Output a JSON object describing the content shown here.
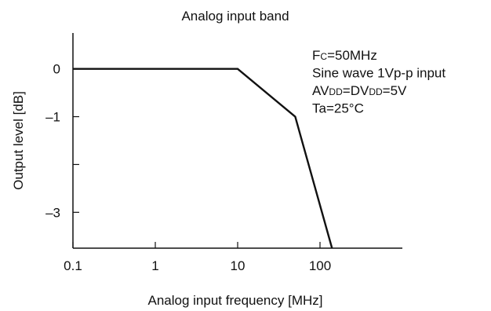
{
  "chart_data": {
    "type": "line",
    "title": "Analog input band",
    "xlabel": "Analog input frequency [MHz]",
    "ylabel": "Output level [dB]",
    "x_scale": "log",
    "xlim": [
      0.1,
      1000
    ],
    "ylim": [
      -3.75,
      0.75
    ],
    "x_ticks": [
      0.1,
      1,
      10,
      100
    ],
    "x_tick_labels": [
      "0.1",
      "1",
      "10",
      "100"
    ],
    "y_ticks": [
      0,
      -1,
      -2,
      -3
    ],
    "y_tick_labels": [
      "0",
      "–1",
      "",
      "–3"
    ],
    "series": [
      {
        "x": [
          0.1,
          10,
          50,
          140
        ],
        "y": [
          0,
          0,
          -1,
          -3.75
        ]
      }
    ],
    "annotations": [
      {
        "parts": [
          {
            "t": "F"
          },
          {
            "t": "C",
            "sub": true
          },
          {
            "t": "=50MHz"
          }
        ]
      },
      {
        "parts": [
          {
            "t": "Sine wave 1Vp-p input"
          }
        ]
      },
      {
        "parts": [
          {
            "t": "AV"
          },
          {
            "t": "DD",
            "sub": true
          },
          {
            "t": "=DV"
          },
          {
            "t": "DD",
            "sub": true
          },
          {
            "t": "=5V"
          }
        ]
      },
      {
        "parts": [
          {
            "t": "Ta=25°C"
          }
        ]
      }
    ]
  }
}
